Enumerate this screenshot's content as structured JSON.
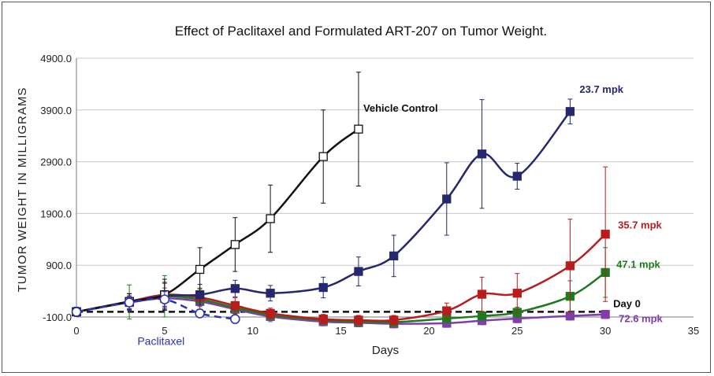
{
  "chart_data": {
    "type": "line",
    "title": "Effect of Paclitaxel and Formulated ART-207 on Tumor Weight.",
    "xlabel": "Days",
    "ylabel": "TUMOR WEIGHT IN MILLIGRAMS",
    "xlim": [
      0,
      35
    ],
    "ylim": [
      -100,
      4900
    ],
    "xticks": [
      "0",
      "5",
      "10",
      "15",
      "20",
      "25",
      "30",
      "35"
    ],
    "yticks": [
      "-100.0",
      "900.0",
      "1900.0",
      "2900.0",
      "3900.0",
      "4900.0"
    ],
    "grid": "horizontal",
    "series": [
      {
        "name": "Vehicle Control",
        "color": "#111111",
        "marker": "square-open",
        "x": [
          0,
          3,
          5,
          7,
          9,
          11,
          14,
          16
        ],
        "y": [
          0,
          200,
          330,
          820,
          1300,
          1800,
          3000,
          3530
        ],
        "err": [
          90,
          150,
          300,
          420,
          520,
          650,
          900,
          1100
        ]
      },
      {
        "name": "23.7 mpk",
        "color": "#25286e",
        "marker": "square",
        "x": [
          0,
          3,
          5,
          7,
          9,
          11,
          14,
          16,
          18,
          21,
          23,
          25,
          28
        ],
        "y": [
          0,
          190,
          310,
          330,
          450,
          360,
          470,
          780,
          1080,
          2180,
          3050,
          2620,
          3870
        ],
        "err": [
          80,
          160,
          260,
          200,
          160,
          150,
          200,
          280,
          400,
          700,
          1050,
          250,
          240
        ]
      },
      {
        "name": "35.7 mpk",
        "color": "#b81c1c",
        "marker": "square",
        "x": [
          0,
          3,
          5,
          7,
          9,
          11,
          14,
          16,
          18,
          21,
          23,
          25,
          28,
          30
        ],
        "y": [
          0,
          200,
          330,
          280,
          120,
          -30,
          -140,
          -160,
          -160,
          20,
          340,
          360,
          890,
          1500
        ],
        "err": [
          80,
          150,
          220,
          180,
          150,
          100,
          90,
          90,
          90,
          150,
          330,
          380,
          900,
          1300
        ]
      },
      {
        "name": "47.1 mpk",
        "color": "#1f7a1f",
        "marker": "square",
        "x": [
          0,
          3,
          5,
          7,
          9,
          11,
          14,
          16,
          18,
          21,
          23,
          25,
          28,
          30
        ],
        "y": [
          0,
          190,
          300,
          240,
          80,
          -60,
          -160,
          -190,
          -200,
          -130,
          -80,
          -10,
          300,
          760
        ],
        "err": [
          80,
          330,
          400,
          200,
          120,
          100,
          80,
          80,
          80,
          80,
          80,
          100,
          300,
          480
        ]
      },
      {
        "name": "72.6 mpk",
        "color": "#7f3fa8",
        "marker": "square",
        "x": [
          0,
          3,
          5,
          7,
          9,
          11,
          14,
          16,
          18,
          21,
          23,
          25,
          28,
          30
        ],
        "y": [
          0,
          180,
          260,
          200,
          50,
          -90,
          -190,
          -210,
          -230,
          -220,
          -170,
          -130,
          -80,
          -50
        ],
        "err": [
          70,
          130,
          200,
          150,
          120,
          100,
          80,
          80,
          80,
          80,
          80,
          80,
          80,
          80
        ]
      },
      {
        "name": "Paclitaxel",
        "color": "#2a34b8",
        "marker": "circle-open",
        "dashed": true,
        "x": [
          0,
          3,
          5,
          7,
          9
        ],
        "y": [
          0,
          180,
          240,
          -30,
          -140
        ],
        "err": [
          80,
          120,
          150,
          80,
          80
        ]
      },
      {
        "name": "Day 0",
        "color": "#111111",
        "marker": "none",
        "dashed": true,
        "x": [
          0,
          30
        ],
        "y": [
          0,
          0
        ]
      }
    ]
  }
}
